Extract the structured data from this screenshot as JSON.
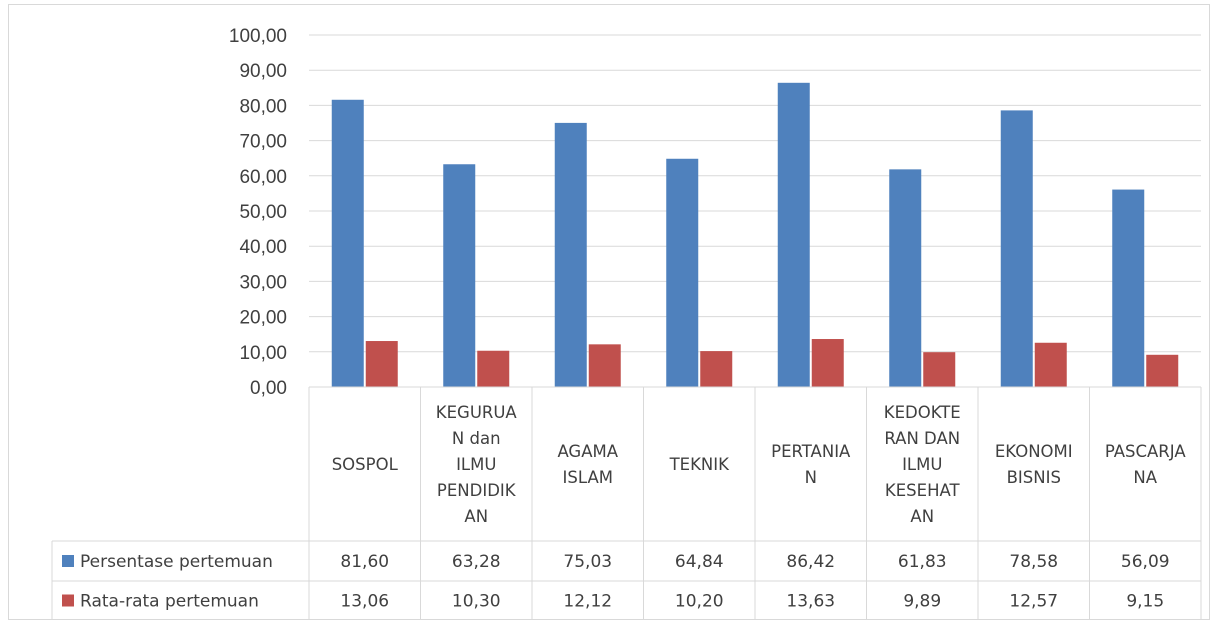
{
  "chart_data": {
    "type": "bar",
    "categories": [
      [
        "SOSPOL"
      ],
      [
        "KEGURUA",
        "N dan",
        "ILMU",
        "PENDIDIK",
        "AN"
      ],
      [
        "AGAMA",
        "ISLAM"
      ],
      [
        "TEKNIK"
      ],
      [
        "PERTANIA",
        "N"
      ],
      [
        "KEDOKTE",
        "RAN DAN",
        "ILMU",
        "KESEHAT",
        "AN"
      ],
      [
        "EKONOMI",
        "BISNIS"
      ],
      [
        "PASCARJA",
        "NA"
      ]
    ],
    "series": [
      {
        "name": "Persentase pertemuan",
        "color": "#4f81bd",
        "values": [
          81.6,
          63.28,
          75.03,
          64.84,
          86.42,
          61.83,
          78.58,
          56.09
        ],
        "labels": [
          "81,60",
          "63,28",
          "75,03",
          "64,84",
          "86,42",
          "61,83",
          "78,58",
          "56,09"
        ]
      },
      {
        "name": "Rata-rata pertemuan",
        "color": "#c0504d",
        "values": [
          13.06,
          10.3,
          12.12,
          10.2,
          13.63,
          9.89,
          12.57,
          9.15
        ],
        "labels": [
          "13,06",
          "10,30",
          "12,12",
          "10,20",
          "13,63",
          "9,89",
          "12,57",
          "9,15"
        ]
      }
    ],
    "y_ticks": [
      "0,00",
      "10,00",
      "20,00",
      "30,00",
      "40,00",
      "50,00",
      "60,00",
      "70,00",
      "80,00",
      "90,00",
      "100,00"
    ],
    "ylim": [
      0,
      100
    ],
    "grid": true,
    "legend_placement": "data-table-left",
    "title": "",
    "xlabel": "",
    "ylabel": ""
  }
}
